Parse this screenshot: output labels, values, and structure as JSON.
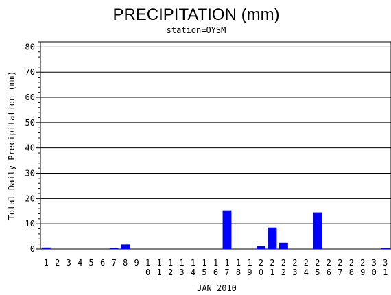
{
  "chart_data": {
    "type": "bar",
    "title": "PRECIPITATION (mm)",
    "subtitle": "station=OYSM",
    "xlabel": "JAN 2010",
    "ylabel": "Total Daily Precipitation (mm)",
    "ylim": [
      0,
      82
    ],
    "yticks": [
      0,
      10,
      20,
      30,
      40,
      50,
      60,
      70,
      80
    ],
    "grid": true,
    "bar_color": "#0000ff",
    "categories": [
      "1",
      "2",
      "3",
      "4",
      "5",
      "6",
      "7",
      "8",
      "9",
      "10",
      "11",
      "12",
      "13",
      "14",
      "15",
      "16",
      "17",
      "18",
      "19",
      "20",
      "21",
      "22",
      "23",
      "24",
      "25",
      "26",
      "27",
      "28",
      "29",
      "30",
      "31"
    ],
    "values": [
      0.6,
      0,
      0,
      0,
      0,
      0,
      0.3,
      1.8,
      0,
      0,
      0,
      0,
      0,
      0,
      0,
      0,
      15.3,
      0,
      0,
      1.2,
      8.5,
      2.5,
      0,
      0,
      14.5,
      0,
      0,
      0,
      0,
      0,
      0.4
    ]
  }
}
